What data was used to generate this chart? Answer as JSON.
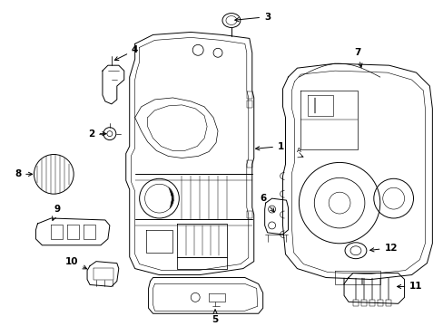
{
  "background_color": "#ffffff",
  "line_color": "#000000",
  "fig_width": 4.89,
  "fig_height": 3.6,
  "dpi": 100,
  "label_fs": 7.5,
  "lw": 0.7
}
